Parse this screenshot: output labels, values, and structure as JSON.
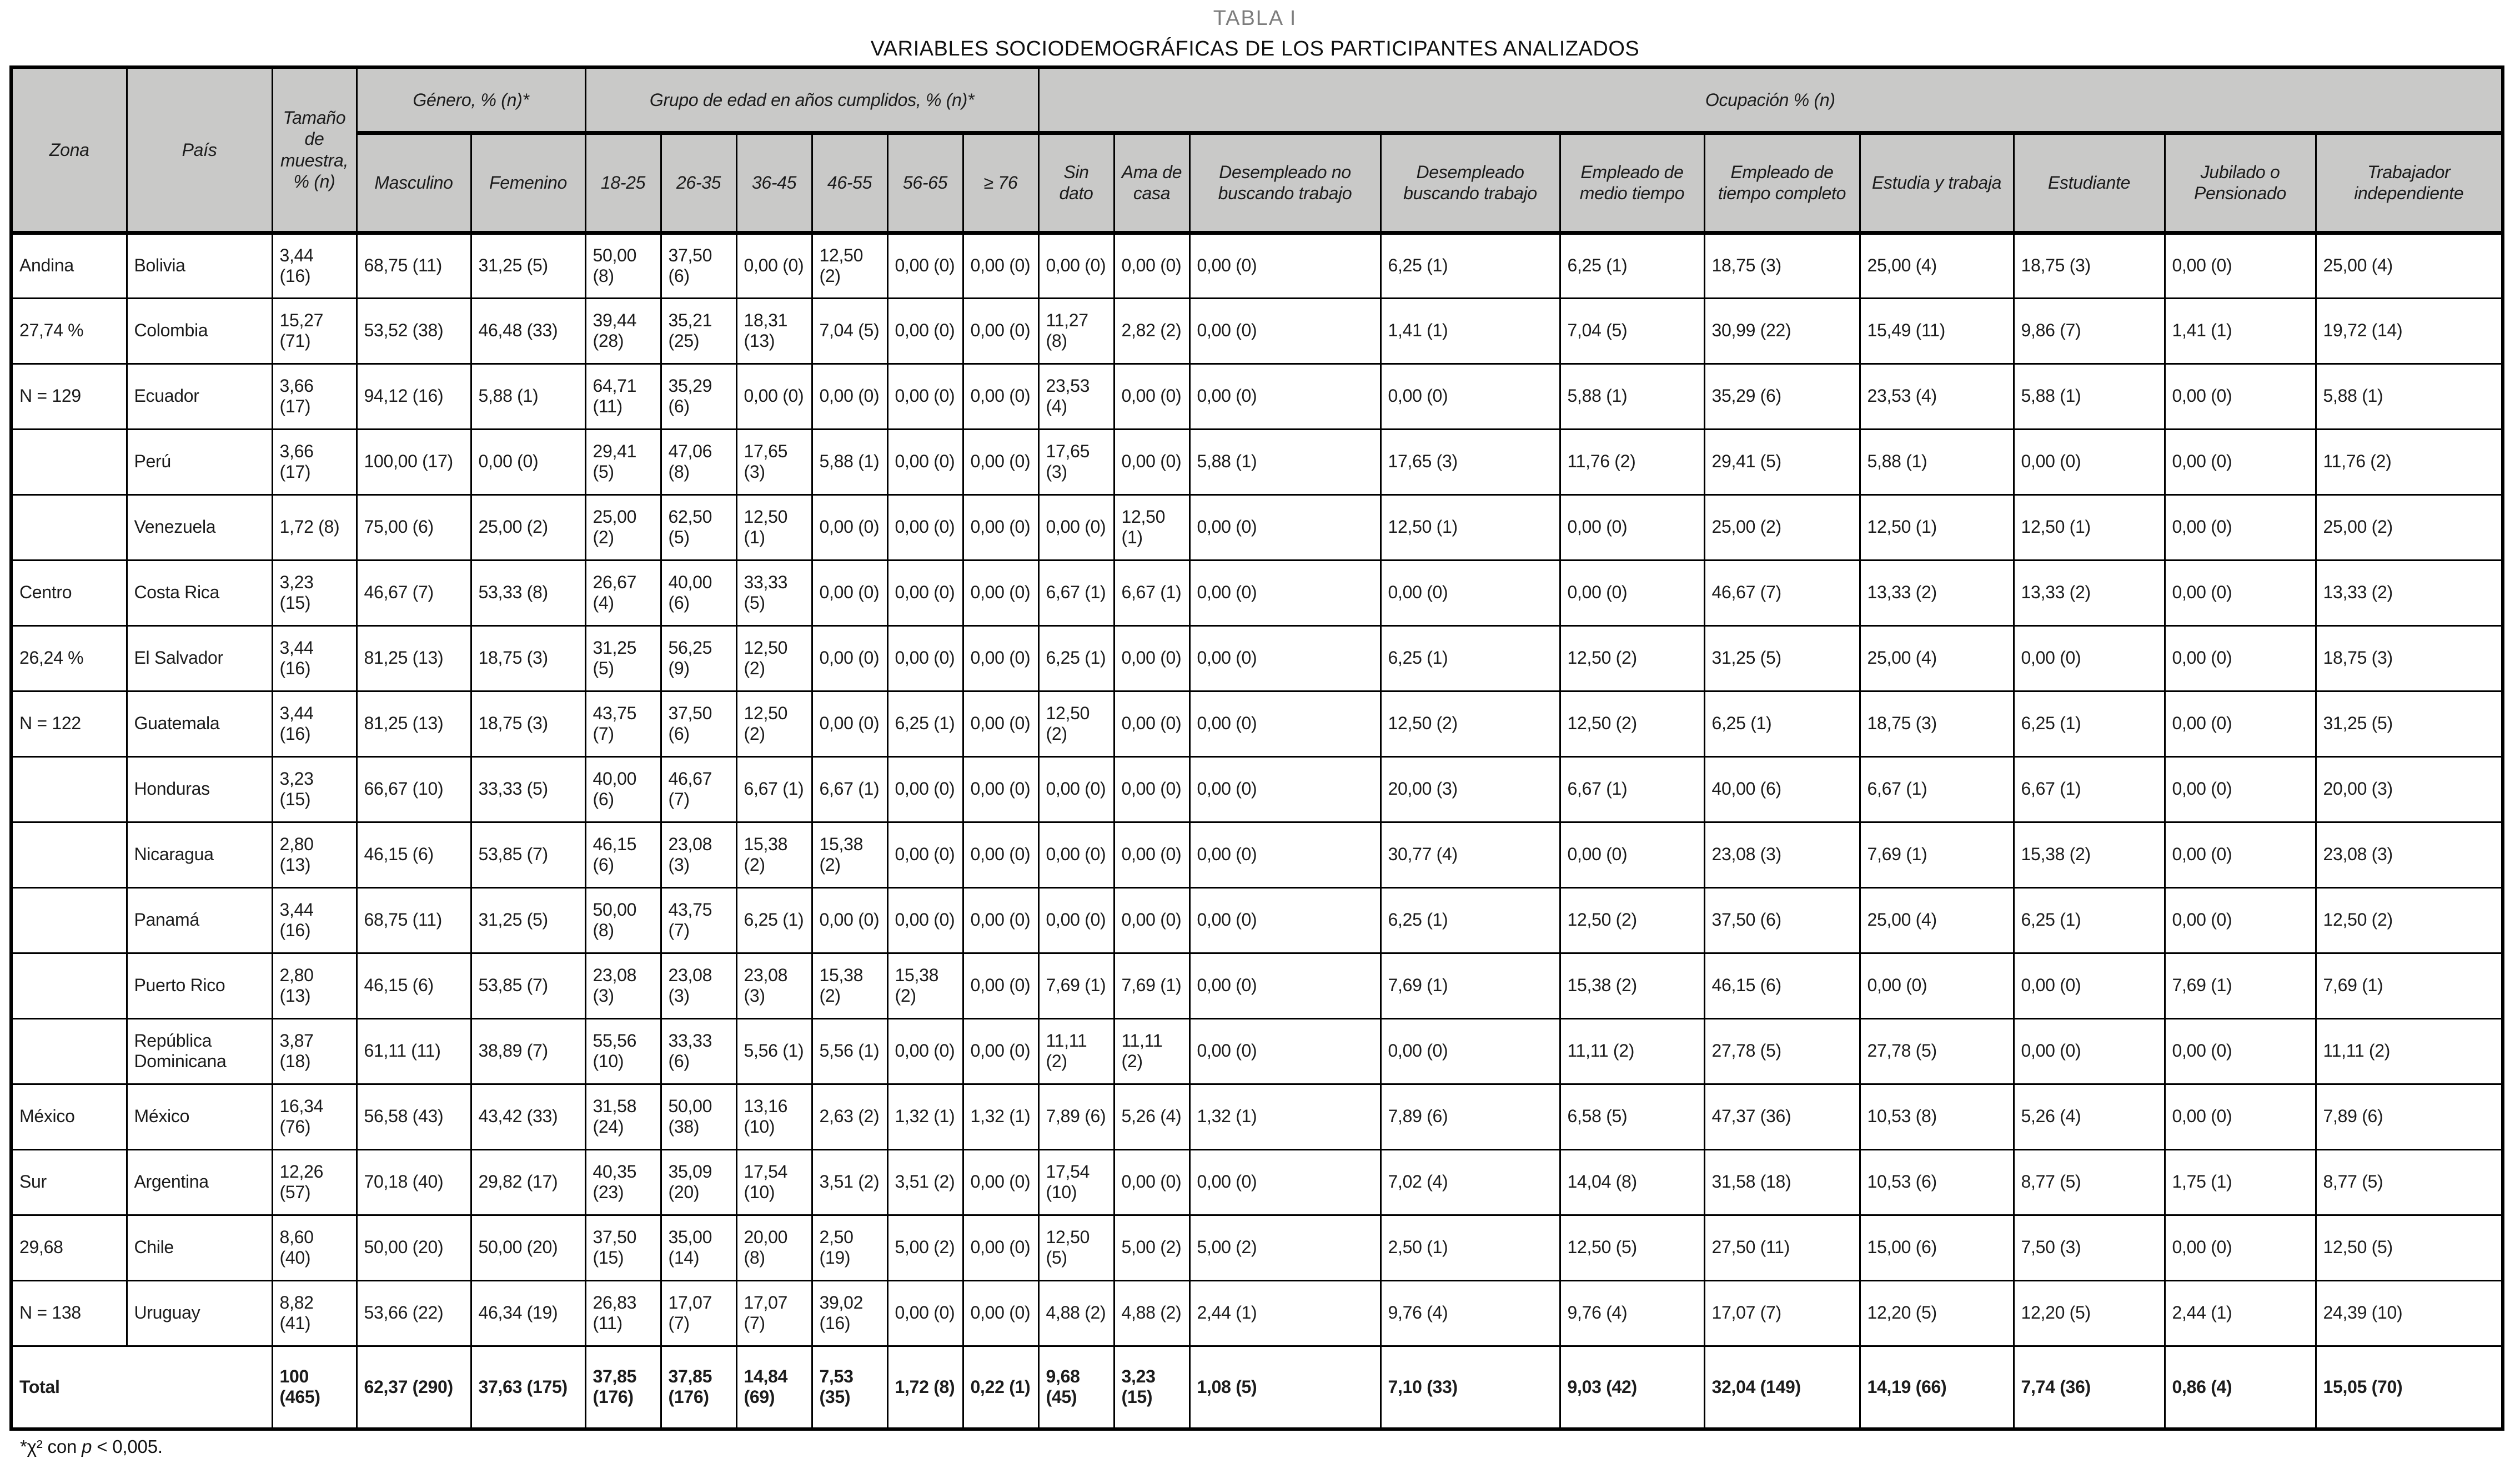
{
  "title": {
    "line1": "TABLA I",
    "line2": "VARIABLES SOCIODEMOGRÁFICAS DE LOS PARTICIPANTES ANALIZADOS"
  },
  "header": {
    "zona": "Zona",
    "pais": "País",
    "tamano": "Tamaño de muestra, % (n)",
    "genero_group": "Género, % (n)*",
    "edad_group": "Grupo de edad en años cumplidos, % (n)*",
    "ocupacion_group": "Ocupación % (n)",
    "sub": [
      "Masculino",
      "Femenino",
      "18-25",
      "26-35",
      "36-45",
      "46-55",
      "56-65",
      "≥ 76",
      "Sin dato",
      "Ama de casa",
      "Desempleado no buscando trabajo",
      "Desempleado buscando trabajo",
      "Empleado de medio tiempo",
      "Empleado de tiempo completo",
      "Estudia y trabaja",
      "Estudiante",
      "Jubilado o Pensionado",
      "Trabajador independiente"
    ]
  },
  "rows": [
    {
      "zona": "Andina",
      "pais": "Bolivia",
      "cells": [
        "3,44 (16)",
        "68,75 (11)",
        "31,25 (5)",
        "50,00 (8)",
        "37,50 (6)",
        "0,00 (0)",
        "12,50 (2)",
        "0,00 (0)",
        "0,00 (0)",
        "0,00 (0)",
        "0,00 (0)",
        "0,00 (0)",
        "6,25 (1)",
        "6,25 (1)",
        "18,75 (3)",
        "25,00 (4)",
        "18,75 (3)",
        "0,00 (0)",
        "25,00 (4)"
      ]
    },
    {
      "zona": "27,74 %",
      "pais": "Colombia",
      "cells": [
        "15,27 (71)",
        "53,52 (38)",
        "46,48 (33)",
        "39,44 (28)",
        "35,21 (25)",
        "18,31 (13)",
        "7,04 (5)",
        "0,00 (0)",
        "0,00 (0)",
        "11,27 (8)",
        "2,82 (2)",
        "0,00 (0)",
        "1,41 (1)",
        "7,04 (5)",
        "30,99 (22)",
        "15,49 (11)",
        "9,86 (7)",
        "1,41 (1)",
        "19,72 (14)"
      ]
    },
    {
      "zona": "N = 129",
      "pais": "Ecuador",
      "cells": [
        "3,66 (17)",
        "94,12 (16)",
        "5,88 (1)",
        "64,71 (11)",
        "35,29 (6)",
        "0,00 (0)",
        "0,00 (0)",
        "0,00 (0)",
        "0,00 (0)",
        "23,53 (4)",
        "0,00 (0)",
        "0,00 (0)",
        "0,00 (0)",
        "5,88 (1)",
        "35,29 (6)",
        "23,53 (4)",
        "5,88 (1)",
        "0,00 (0)",
        "5,88 (1)"
      ]
    },
    {
      "zona": "",
      "pais": "Perú",
      "cells": [
        "3,66 (17)",
        "100,00 (17)",
        "0,00 (0)",
        "29,41 (5)",
        "47,06 (8)",
        "17,65 (3)",
        "5,88 (1)",
        "0,00 (0)",
        "0,00 (0)",
        "17,65 (3)",
        "0,00 (0)",
        "5,88 (1)",
        "17,65 (3)",
        "11,76 (2)",
        "29,41 (5)",
        "5,88 (1)",
        "0,00 (0)",
        "0,00 (0)",
        "11,76 (2)"
      ]
    },
    {
      "zona": "",
      "pais": "Venezuela",
      "cells": [
        "1,72 (8)",
        "75,00 (6)",
        "25,00 (2)",
        "25,00 (2)",
        "62,50 (5)",
        "12,50 (1)",
        "0,00 (0)",
        "0,00 (0)",
        "0,00 (0)",
        "0,00 (0)",
        "12,50 (1)",
        "0,00 (0)",
        "12,50 (1)",
        "0,00 (0)",
        "25,00 (2)",
        "12,50 (1)",
        "12,50 (1)",
        "0,00 (0)",
        "25,00 (2)"
      ]
    },
    {
      "zona": "Centro",
      "pais": "Costa Rica",
      "cells": [
        "3,23 (15)",
        "46,67 (7)",
        "53,33 (8)",
        "26,67 (4)",
        "40,00 (6)",
        "33,33 (5)",
        "0,00 (0)",
        "0,00 (0)",
        "0,00 (0)",
        "6,67 (1)",
        "6,67 (1)",
        "0,00 (0)",
        "0,00 (0)",
        "0,00 (0)",
        "46,67 (7)",
        "13,33 (2)",
        "13,33 (2)",
        "0,00 (0)",
        "13,33 (2)"
      ]
    },
    {
      "zona": "26,24 %",
      "pais": "El Salvador",
      "cells": [
        "3,44 (16)",
        "81,25 (13)",
        "18,75 (3)",
        "31,25 (5)",
        "56,25 (9)",
        "12,50 (2)",
        "0,00 (0)",
        "0,00 (0)",
        "0,00 (0)",
        "6,25 (1)",
        "0,00 (0)",
        "0,00 (0)",
        "6,25 (1)",
        "12,50 (2)",
        "31,25 (5)",
        "25,00 (4)",
        "0,00 (0)",
        "0,00 (0)",
        "18,75 (3)"
      ]
    },
    {
      "zona": "N = 122",
      "pais": "Guatemala",
      "cells": [
        "3,44 (16)",
        "81,25 (13)",
        "18,75 (3)",
        "43,75 (7)",
        "37,50 (6)",
        "12,50 (2)",
        "0,00 (0)",
        "6,25 (1)",
        "0,00 (0)",
        "12,50 (2)",
        "0,00 (0)",
        "0,00 (0)",
        "12,50 (2)",
        "12,50 (2)",
        "6,25 (1)",
        "18,75 (3)",
        "6,25 (1)",
        "0,00 (0)",
        "31,25 (5)"
      ]
    },
    {
      "zona": "",
      "pais": "Honduras",
      "cells": [
        "3,23 (15)",
        "66,67 (10)",
        "33,33 (5)",
        "40,00 (6)",
        "46,67 (7)",
        "6,67 (1)",
        "6,67 (1)",
        "0,00 (0)",
        "0,00 (0)",
        "0,00 (0)",
        "0,00 (0)",
        "0,00 (0)",
        "20,00 (3)",
        "6,67 (1)",
        "40,00 (6)",
        "6,67 (1)",
        "6,67 (1)",
        "0,00 (0)",
        "20,00 (3)"
      ]
    },
    {
      "zona": "",
      "pais": "Nicaragua",
      "cells": [
        "2,80 (13)",
        "46,15 (6)",
        "53,85 (7)",
        "46,15 (6)",
        "23,08 (3)",
        "15,38 (2)",
        "15,38 (2)",
        "0,00 (0)",
        "0,00 (0)",
        "0,00 (0)",
        "0,00 (0)",
        "0,00 (0)",
        "30,77 (4)",
        "0,00 (0)",
        "23,08 (3)",
        "7,69 (1)",
        "15,38 (2)",
        "0,00 (0)",
        "23,08 (3)"
      ]
    },
    {
      "zona": "",
      "pais": "Panamá",
      "cells": [
        "3,44 (16)",
        "68,75 (11)",
        "31,25 (5)",
        "50,00 (8)",
        "43,75 (7)",
        "6,25 (1)",
        "0,00 (0)",
        "0,00 (0)",
        "0,00 (0)",
        "0,00 (0)",
        "0,00 (0)",
        "0,00 (0)",
        "6,25 (1)",
        "12,50 (2)",
        "37,50 (6)",
        "25,00 (4)",
        "6,25 (1)",
        "0,00 (0)",
        "12,50 (2)"
      ]
    },
    {
      "zona": "",
      "pais": "Puerto Rico",
      "cells": [
        "2,80 (13)",
        "46,15 (6)",
        "53,85 (7)",
        "23,08 (3)",
        "23,08 (3)",
        "23,08 (3)",
        "15,38 (2)",
        "15,38 (2)",
        "0,00 (0)",
        "7,69 (1)",
        "7,69 (1)",
        "0,00 (0)",
        "7,69 (1)",
        "15,38 (2)",
        "46,15 (6)",
        "0,00 (0)",
        "0,00 (0)",
        "7,69 (1)",
        "7,69 (1)"
      ]
    },
    {
      "zona": "",
      "pais": "República Dominicana",
      "cells": [
        "3,87 (18)",
        "61,11 (11)",
        "38,89 (7)",
        "55,56 (10)",
        "33,33 (6)",
        "5,56 (1)",
        "5,56 (1)",
        "0,00 (0)",
        "0,00 (0)",
        "11,11 (2)",
        "11,11 (2)",
        "0,00 (0)",
        "0,00 (0)",
        "11,11 (2)",
        "27,78 (5)",
        "27,78 (5)",
        "0,00 (0)",
        "0,00 (0)",
        "11,11 (2)"
      ]
    },
    {
      "zona": "México",
      "pais": "México",
      "cells": [
        "16,34 (76)",
        "56,58 (43)",
        "43,42 (33)",
        "31,58 (24)",
        "50,00 (38)",
        "13,16 (10)",
        "2,63 (2)",
        "1,32 (1)",
        "1,32 (1)",
        "7,89 (6)",
        "5,26 (4)",
        "1,32 (1)",
        "7,89 (6)",
        "6,58 (5)",
        "47,37 (36)",
        "10,53 (8)",
        "5,26 (4)",
        "0,00 (0)",
        "7,89 (6)"
      ]
    },
    {
      "zona": "Sur",
      "pais": "Argentina",
      "cells": [
        "12,26 (57)",
        "70,18 (40)",
        "29,82 (17)",
        "40,35 (23)",
        "35,09 (20)",
        "17,54 (10)",
        "3,51 (2)",
        "3,51 (2)",
        "0,00 (0)",
        "17,54 (10)",
        "0,00 (0)",
        "0,00 (0)",
        "7,02 (4)",
        "14,04 (8)",
        "31,58 (18)",
        "10,53 (6)",
        "8,77 (5)",
        "1,75 (1)",
        "8,77 (5)"
      ]
    },
    {
      "zona": "29,68",
      "pais": "Chile",
      "cells": [
        "8,60 (40)",
        "50,00 (20)",
        "50,00 (20)",
        "37,50 (15)",
        "35,00 (14)",
        "20,00 (8)",
        "2,50 (19)",
        "5,00 (2)",
        "0,00 (0)",
        "12,50 (5)",
        "5,00 (2)",
        "5,00 (2)",
        "2,50 (1)",
        "12,50 (5)",
        "27,50 (11)",
        "15,00 (6)",
        "7,50 (3)",
        "0,00 (0)",
        "12,50 (5)"
      ]
    },
    {
      "zona": "N = 138",
      "pais": "Uruguay",
      "cells": [
        "8,82 (41)",
        "53,66 (22)",
        "46,34 (19)",
        "26,83 (11)",
        "17,07 (7)",
        "17,07 (7)",
        "39,02 (16)",
        "0,00 (0)",
        "0,00 (0)",
        "4,88 (2)",
        "4,88 (2)",
        "2,44 (1)",
        "9,76 (4)",
        "9,76 (4)",
        "17,07 (7)",
        "12,20 (5)",
        "12,20 (5)",
        "2,44 (1)",
        "24,39 (10)"
      ]
    }
  ],
  "total": {
    "label": "Total",
    "cells": [
      "100 (465)",
      "62,37 (290)",
      "37,63 (175)",
      "37,85 (176)",
      "37,85 (176)",
      "14,84 (69)",
      "7,53 (35)",
      "1,72 (8)",
      "0,22 (1)",
      "9,68 (45)",
      "3,23 (15)",
      "1,08 (5)",
      "7,10 (33)",
      "9,03 (42)",
      "32,04 (149)",
      "14,19 (66)",
      "7,74 (36)",
      "0,86 (4)",
      "15,05 (70)"
    ]
  },
  "footnote": {
    "pre": "*χ² con ",
    "p_var": "p",
    "post": " < 0,005."
  },
  "colors": {
    "header_bg": "#c9c9c8",
    "title_gray": "#7d7d7d",
    "border": "#000000",
    "text": "#1c1c1c"
  }
}
